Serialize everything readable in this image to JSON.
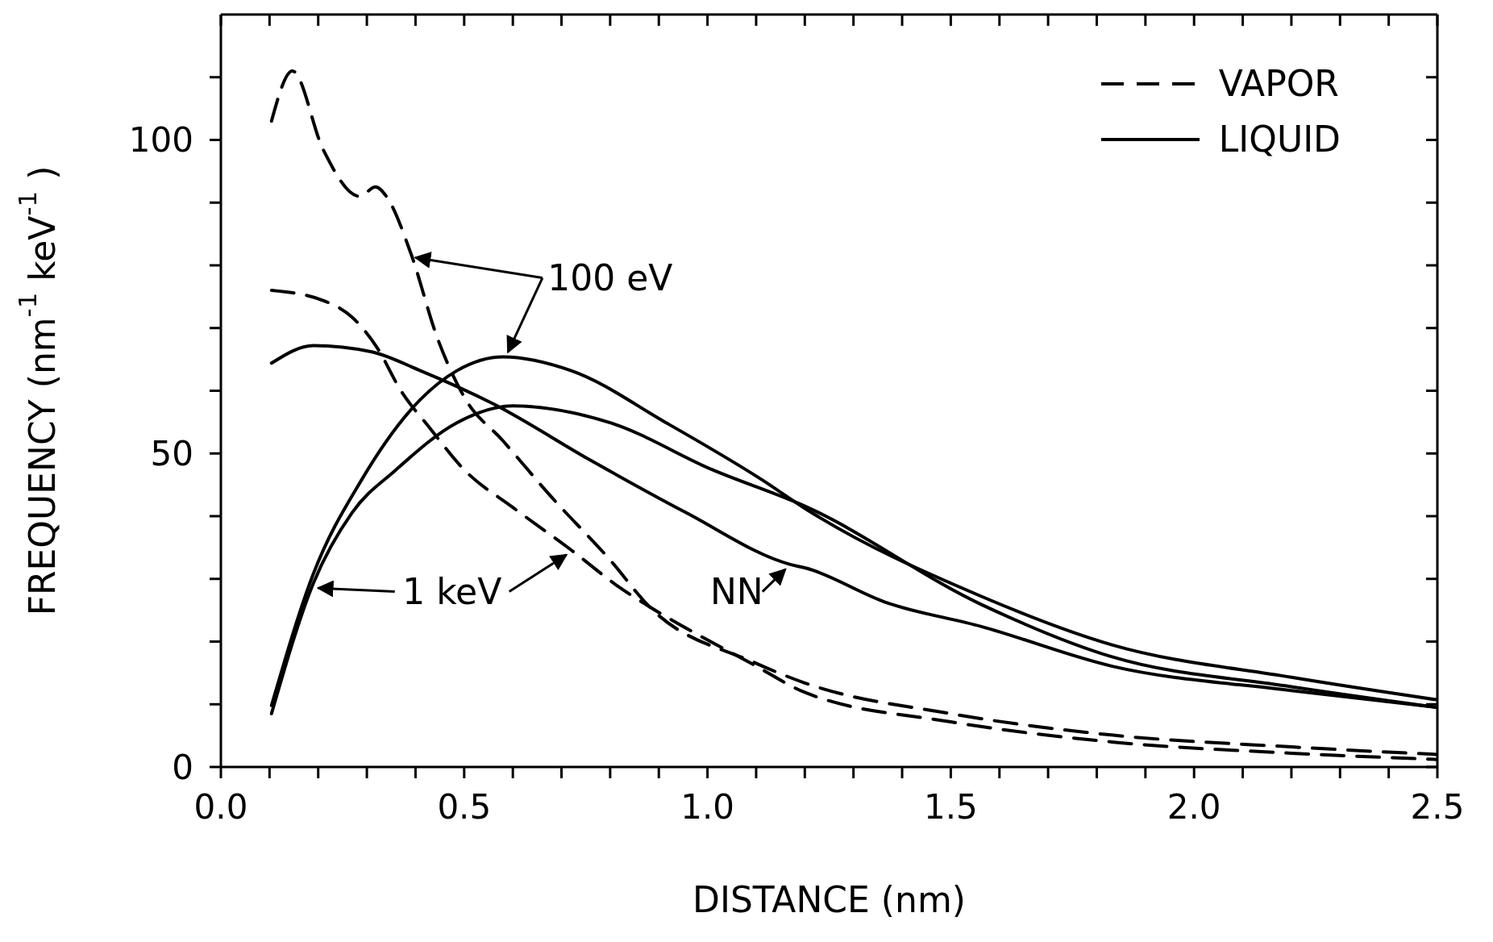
{
  "chart_data": {
    "type": "line",
    "xlabel": "DISTANCE (nm)",
    "ylabel": "FREQUENCY (nm$^{-1}$ keV$^{-1}$)",
    "xlim": [
      0,
      2.5
    ],
    "ylim": [
      0,
      120
    ],
    "xticks": [
      {
        "value": 0,
        "label": "0.0"
      },
      {
        "value": 0.1,
        "label": null
      },
      {
        "value": 0.2,
        "label": null
      },
      {
        "value": 0.3,
        "label": null
      },
      {
        "value": 0.4,
        "label": null
      },
      {
        "value": 0.5,
        "label": "0.5"
      },
      {
        "value": 0.6,
        "label": null
      },
      {
        "value": 0.7,
        "label": null
      },
      {
        "value": 0.8,
        "label": null
      },
      {
        "value": 0.9,
        "label": null
      },
      {
        "value": 1.0,
        "label": "1.0"
      },
      {
        "value": 1.1,
        "label": null
      },
      {
        "value": 1.2,
        "label": null
      },
      {
        "value": 1.3,
        "label": null
      },
      {
        "value": 1.4,
        "label": null
      },
      {
        "value": 1.5,
        "label": "1.5"
      },
      {
        "value": 1.6,
        "label": null
      },
      {
        "value": 1.7,
        "label": null
      },
      {
        "value": 1.8,
        "label": null
      },
      {
        "value": 1.9,
        "label": null
      },
      {
        "value": 2.0,
        "label": "2.0"
      },
      {
        "value": 2.1,
        "label": null
      },
      {
        "value": 2.2,
        "label": null
      },
      {
        "value": 2.3,
        "label": null
      },
      {
        "value": 2.4,
        "label": null
      },
      {
        "value": 2.5,
        "label": "2.5"
      }
    ],
    "yticks": [
      0,
      {
        "value": 10,
        "label": null
      },
      {
        "value": 20,
        "label": null
      },
      {
        "value": 30,
        "label": null
      },
      {
        "value": 40,
        "label": null
      },
      50,
      {
        "value": 60,
        "label": null
      },
      {
        "value": 70,
        "label": null
      },
      {
        "value": 80,
        "label": null
      },
      {
        "value": 90,
        "label": null
      },
      100,
      {
        "value": 110,
        "label": null
      }
    ],
    "legend": "top right",
    "marker": "none",
    "series": [
      {
        "name": "VAPOR",
        "color": "#000000",
        "line_style": "dashed",
        "x": [
          0.104,
          0.147,
          0.21,
          0.285,
          0.318,
          0.34,
          0.39,
          0.445,
          0.5,
          0.58,
          0.68,
          0.8,
          0.88,
          1.095,
          1.2,
          1.5,
          1.83,
          2.2,
          2.5
        ],
        "values": [
          103,
          111,
          98.5,
          91,
          92.5,
          91,
          82,
          68.4,
          59,
          52,
          43,
          33,
          25.6,
          16.7,
          13.4,
          8.5,
          5.1,
          3.2,
          2.0
        ]
      },
      {
        "color": "#000000",
        "line_style": "dashed",
        "x": [
          0.104,
          0.21,
          0.27,
          0.32,
          0.37,
          0.43,
          0.5,
          0.6,
          0.72,
          0.82,
          0.88,
          1.095,
          1.2,
          1.5,
          1.83,
          2.2,
          2.5
        ],
        "values": [
          76,
          74.4,
          71.7,
          67,
          60,
          54,
          47.4,
          41.4,
          34.6,
          28.6,
          25.6,
          16.3,
          11.9,
          7.2,
          4.0,
          2.2,
          1.2
        ]
      },
      {
        "name": "LIQUID",
        "color": "#000000",
        "line_style": "solid",
        "x": [
          0.104,
          0.19,
          0.31,
          0.41,
          0.56,
          0.76,
          0.955,
          1.17,
          1.203,
          1.365,
          1.563,
          1.83,
          2.2,
          2.5
        ],
        "values": [
          64.4,
          67.2,
          66.2,
          63.2,
          57.9,
          48.9,
          40.6,
          32.3,
          31.7,
          26.3,
          22.4,
          16.1,
          12.2,
          9.5
        ]
      },
      {
        "color": "#000000",
        "line_style": "solid",
        "x": [
          0.104,
          0.19,
          0.29,
          0.41,
          0.485,
          0.58,
          0.72,
          0.915,
          1.11,
          1.203,
          1.563,
          1.83,
          2.2,
          2.5
        ],
        "values": [
          9.8,
          30.8,
          45.9,
          58.6,
          63.2,
          65.4,
          63.2,
          54.9,
          45.9,
          41.1,
          27.2,
          19.5,
          14.3,
          10.7
        ]
      },
      {
        "color": "#000000",
        "line_style": "solid",
        "x": [
          0.104,
          0.19,
          0.27,
          0.36,
          0.485,
          0.6,
          0.8,
          1.01,
          1.203,
          1.563,
          1.83,
          2.2,
          2.5
        ],
        "values": [
          8.5,
          29.3,
          40.6,
          47.4,
          54.9,
          57.6,
          54.9,
          47.4,
          41.5,
          25.9,
          17.6,
          12.8,
          9.5
        ]
      }
    ],
    "annotations": [
      {
        "text": "100 eV",
        "x": 0.39,
        "y": 82
      },
      {
        "text": "1 keV",
        "x": 0.19,
        "y": 29.3
      },
      {
        "text": "NN",
        "x": 1.17,
        "y": 32.3
      }
    ]
  }
}
